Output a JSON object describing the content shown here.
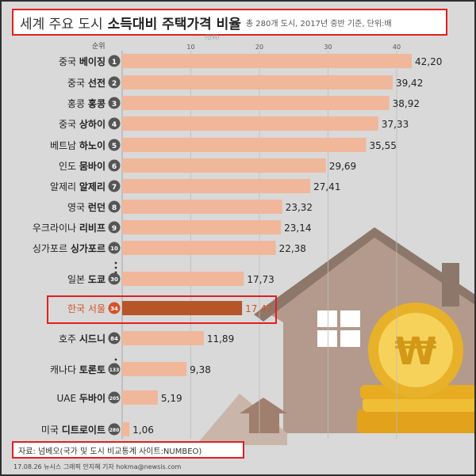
{
  "title": {
    "light": "세계 주요 도시",
    "bold": "소득대비 주택가격 비율",
    "subtitle": "총 280개 도시, 2017년 중반 기준, 단위:배"
  },
  "rank_header": "순위",
  "unit_label": "(단위)",
  "source": "자료: 넘베오(국가 및 도시 비교통계 사이트:NUMBEO)",
  "credit": "17.08.26 뉴시스 그래픽 안지혜 기자 hokma@newsis.com",
  "colors": {
    "bar": "#f0b79b",
    "highlight_bar": "#b7552a",
    "highlight_text": "#d2532a",
    "frame_border": "#e0201f"
  },
  "chart_data": {
    "type": "bar",
    "orientation": "horizontal",
    "xlim": [
      0,
      45
    ],
    "x_ticks": [
      10,
      20,
      30,
      40
    ],
    "grid": true,
    "categories": [
      "중국 베이징",
      "중국 선전",
      "홍콩 홍콩",
      "중국 상하이",
      "베트남 하노이",
      "인도 뭄바이",
      "알제리 알제리",
      "영국 런던",
      "우크라이나 리비프",
      "싱가포르 싱가포르",
      "일본 도쿄",
      "한국 서울",
      "호주 시드니",
      "캐나다 토론토",
      "UAE 두바이",
      "미국 디트로이트"
    ],
    "country": [
      "중국",
      "중국",
      "홍콩",
      "중국",
      "베트남",
      "인도",
      "알제리",
      "영국",
      "우크라이나",
      "싱가포르",
      "일본",
      "한국",
      "호주",
      "캐나다",
      "UAE",
      "미국"
    ],
    "city": [
      "베이징",
      "선전",
      "홍콩",
      "상하이",
      "하노이",
      "뭄바이",
      "알제리",
      "런던",
      "리비프",
      "싱가포르",
      "도쿄",
      "서울",
      "시드니",
      "토론토",
      "두바이",
      "디트로이트"
    ],
    "ranks": [
      "1",
      "2",
      "3",
      "4",
      "5",
      "6",
      "7",
      "8",
      "9",
      "10",
      "30",
      "34",
      "84",
      "133",
      "205",
      "280"
    ],
    "values": [
      42.2,
      39.42,
      38.92,
      37.33,
      35.55,
      29.69,
      27.41,
      23.32,
      23.14,
      22.38,
      17.73,
      17.47,
      11.89,
      9.38,
      5.19,
      1.06
    ],
    "value_labels": [
      "42,20",
      "39,42",
      "38,92",
      "37,33",
      "35,55",
      "29,69",
      "27,41",
      "23,32",
      "23,14",
      "22,38",
      "17,73",
      "17,47",
      "11,89",
      "9,38",
      "5,19",
      "1,06"
    ],
    "highlight_index": 11
  }
}
